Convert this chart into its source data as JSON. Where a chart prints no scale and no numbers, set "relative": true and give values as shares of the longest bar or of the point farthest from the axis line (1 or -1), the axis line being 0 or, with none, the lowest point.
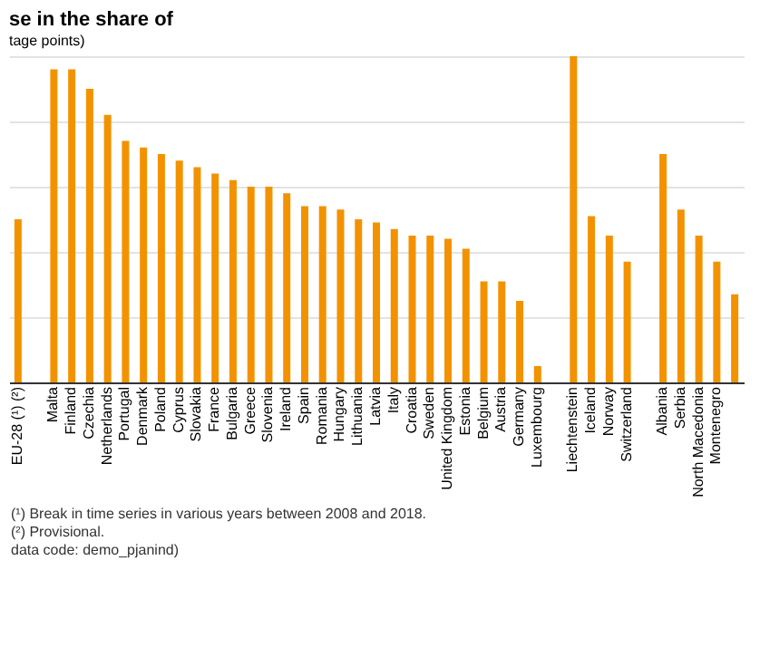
{
  "chart_data": {
    "type": "bar",
    "title": "se in the share of",
    "subtitle": "tage points)",
    "relative": true,
    "grid": "y",
    "color": "#f39200",
    "categories": [
      "EU-28 (¹) (²)",
      null,
      "Malta",
      "Finland",
      "Czechia",
      "Netherlands",
      "Portugal",
      "Denmark",
      "Poland",
      "Cyprus",
      "Slovakia",
      "France",
      "Bulgaria",
      "Greece",
      "Slovenia",
      "Ireland",
      "Spain",
      "Romania",
      "Hungary",
      "Lithuania",
      "Latvia",
      "Italy",
      "Croatia",
      "Sweden",
      "United Kingdom",
      "Estonia",
      "Belgium",
      "Austria",
      "Germany",
      "Luxembourg",
      null,
      "Liechtenstein",
      "Iceland",
      "Norway",
      "Switzerland",
      null,
      "Albania",
      "Serbia",
      "North Macedonia",
      "Montenegro",
      null
    ],
    "values": [
      0.5,
      null,
      0.96,
      0.96,
      0.9,
      0.82,
      0.74,
      0.72,
      0.7,
      0.68,
      0.66,
      0.64,
      0.62,
      0.6,
      0.6,
      0.58,
      0.54,
      0.54,
      0.53,
      0.5,
      0.49,
      0.47,
      0.45,
      0.45,
      0.44,
      0.41,
      0.31,
      0.31,
      0.25,
      0.05,
      null,
      1,
      0.51,
      0.45,
      0.37,
      null,
      0.7,
      0.53,
      0.45,
      0.37,
      0.27
    ],
    "annotations": [
      "(¹) Break in time series in various years between 2008 and 2018.",
      "(²) Provisional.",
      "data code: demo_pjanind)"
    ]
  }
}
